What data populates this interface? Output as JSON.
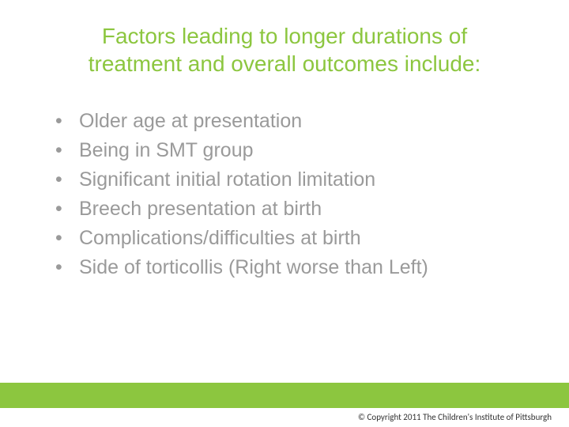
{
  "colors": {
    "accent": "#8cc63f",
    "title_text": "#8cc63f",
    "body_text": "#9a9a9a",
    "bullet_color": "#9a9a9a",
    "footer_bar": "#8cc63f",
    "background": "#ffffff",
    "copyright_text": "#333333"
  },
  "typography": {
    "title_fontsize": 28,
    "body_fontsize": 25,
    "copyright_fontsize": 11,
    "font_family": "Arial"
  },
  "title": "Factors leading to longer durations of treatment and overall outcomes include:",
  "bullets": [
    "Older age at presentation",
    "Being in SMT group",
    "Significant initial rotation limitation",
    "Breech presentation at birth",
    "Complications/difficulties at birth",
    "Side of torticollis (Right worse than Left)"
  ],
  "copyright": "© Copyright 2011 The Children's Institute of Pittsburgh"
}
